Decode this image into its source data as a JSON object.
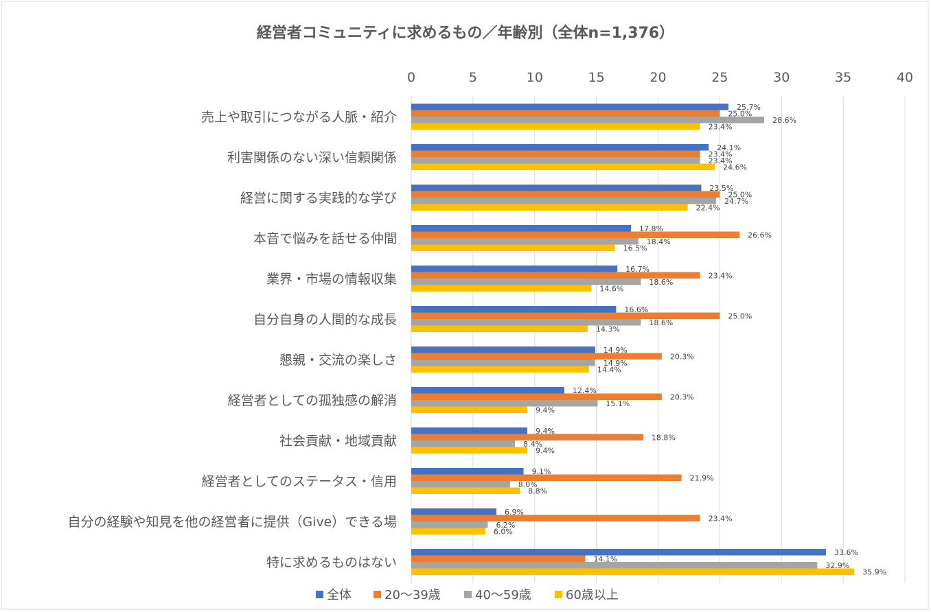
{
  "chart_data": {
    "type": "bar",
    "orientation": "horizontal",
    "title": "経営者コミュニティに求めるもの／年齢別（全体n=1,376）",
    "xlim": [
      0,
      40
    ],
    "ticks": [
      "0",
      "5",
      "10",
      "15",
      "20",
      "25",
      "30",
      "35",
      "40"
    ],
    "tick_values": [
      0,
      5,
      10,
      15,
      20,
      25,
      30,
      35,
      40
    ],
    "axis_position": "top",
    "grid": true,
    "legend_position": "bottom",
    "categories": [
      "売上や取引につながる人脈・紹介",
      "利害関係のない深い信頼関係",
      "経営に関する実践的な学び",
      "本音で悩みを話せる仲間",
      "業界・市場の情報収集",
      "自分自身の人間的な成長",
      "懇親・交流の楽しさ",
      "経営者としての孤独感の解消",
      "社会貢献・地域貢献",
      "経営者としてのステータス・信用",
      "自分の経験や知見を他の経営者に提供（Give）できる場",
      "特に求めるものはない"
    ],
    "series": [
      {
        "name": "全体",
        "color": "#4472c4",
        "values": [
          25.7,
          24.1,
          23.5,
          17.8,
          16.7,
          16.6,
          14.9,
          12.4,
          9.4,
          9.1,
          6.9,
          33.6
        ],
        "labels": [
          "25.7%",
          "24.1%",
          "23.5%",
          "17.8%",
          "16.7%",
          "16.6%",
          "14.9%",
          "12.4%",
          "9.4%",
          "9.1%",
          "6.9%",
          "33.6%"
        ]
      },
      {
        "name": "20〜39歳",
        "color": "#ed7d31",
        "values": [
          25.0,
          23.4,
          25.0,
          26.6,
          23.4,
          25.0,
          20.3,
          20.3,
          18.8,
          21.9,
          23.4,
          14.1
        ],
        "labels": [
          "25.0%",
          "23.4%",
          "25.0%",
          "26.6%",
          "23.4%",
          "25.0%",
          "20.3%",
          "20.3%",
          "18.8%",
          "21.9%",
          "23.4%",
          "14.1%"
        ]
      },
      {
        "name": "40〜59歳",
        "color": "#a5a5a5",
        "values": [
          28.6,
          23.4,
          24.7,
          18.4,
          18.6,
          18.6,
          14.9,
          15.1,
          8.4,
          8.0,
          6.2,
          32.9
        ],
        "labels": [
          "28.6%",
          "23.4%",
          "24.7%",
          "18.4%",
          "18.6%",
          "18.6%",
          "14.9%",
          "15.1%",
          "8.4%",
          "8.0%",
          "6.2%",
          "32.9%"
        ]
      },
      {
        "name": "60歳以上",
        "color": "#ffc000",
        "values": [
          23.4,
          24.6,
          22.4,
          16.5,
          14.6,
          14.3,
          14.4,
          9.4,
          9.4,
          8.8,
          6.0,
          35.9
        ],
        "labels": [
          "23.4%",
          "24.6%",
          "22.4%",
          "16.5%",
          "14.6%",
          "14.3%",
          "14.4%",
          "9.4%",
          "9.4%",
          "8.8%",
          "6.0%",
          "35.9%"
        ]
      }
    ]
  }
}
